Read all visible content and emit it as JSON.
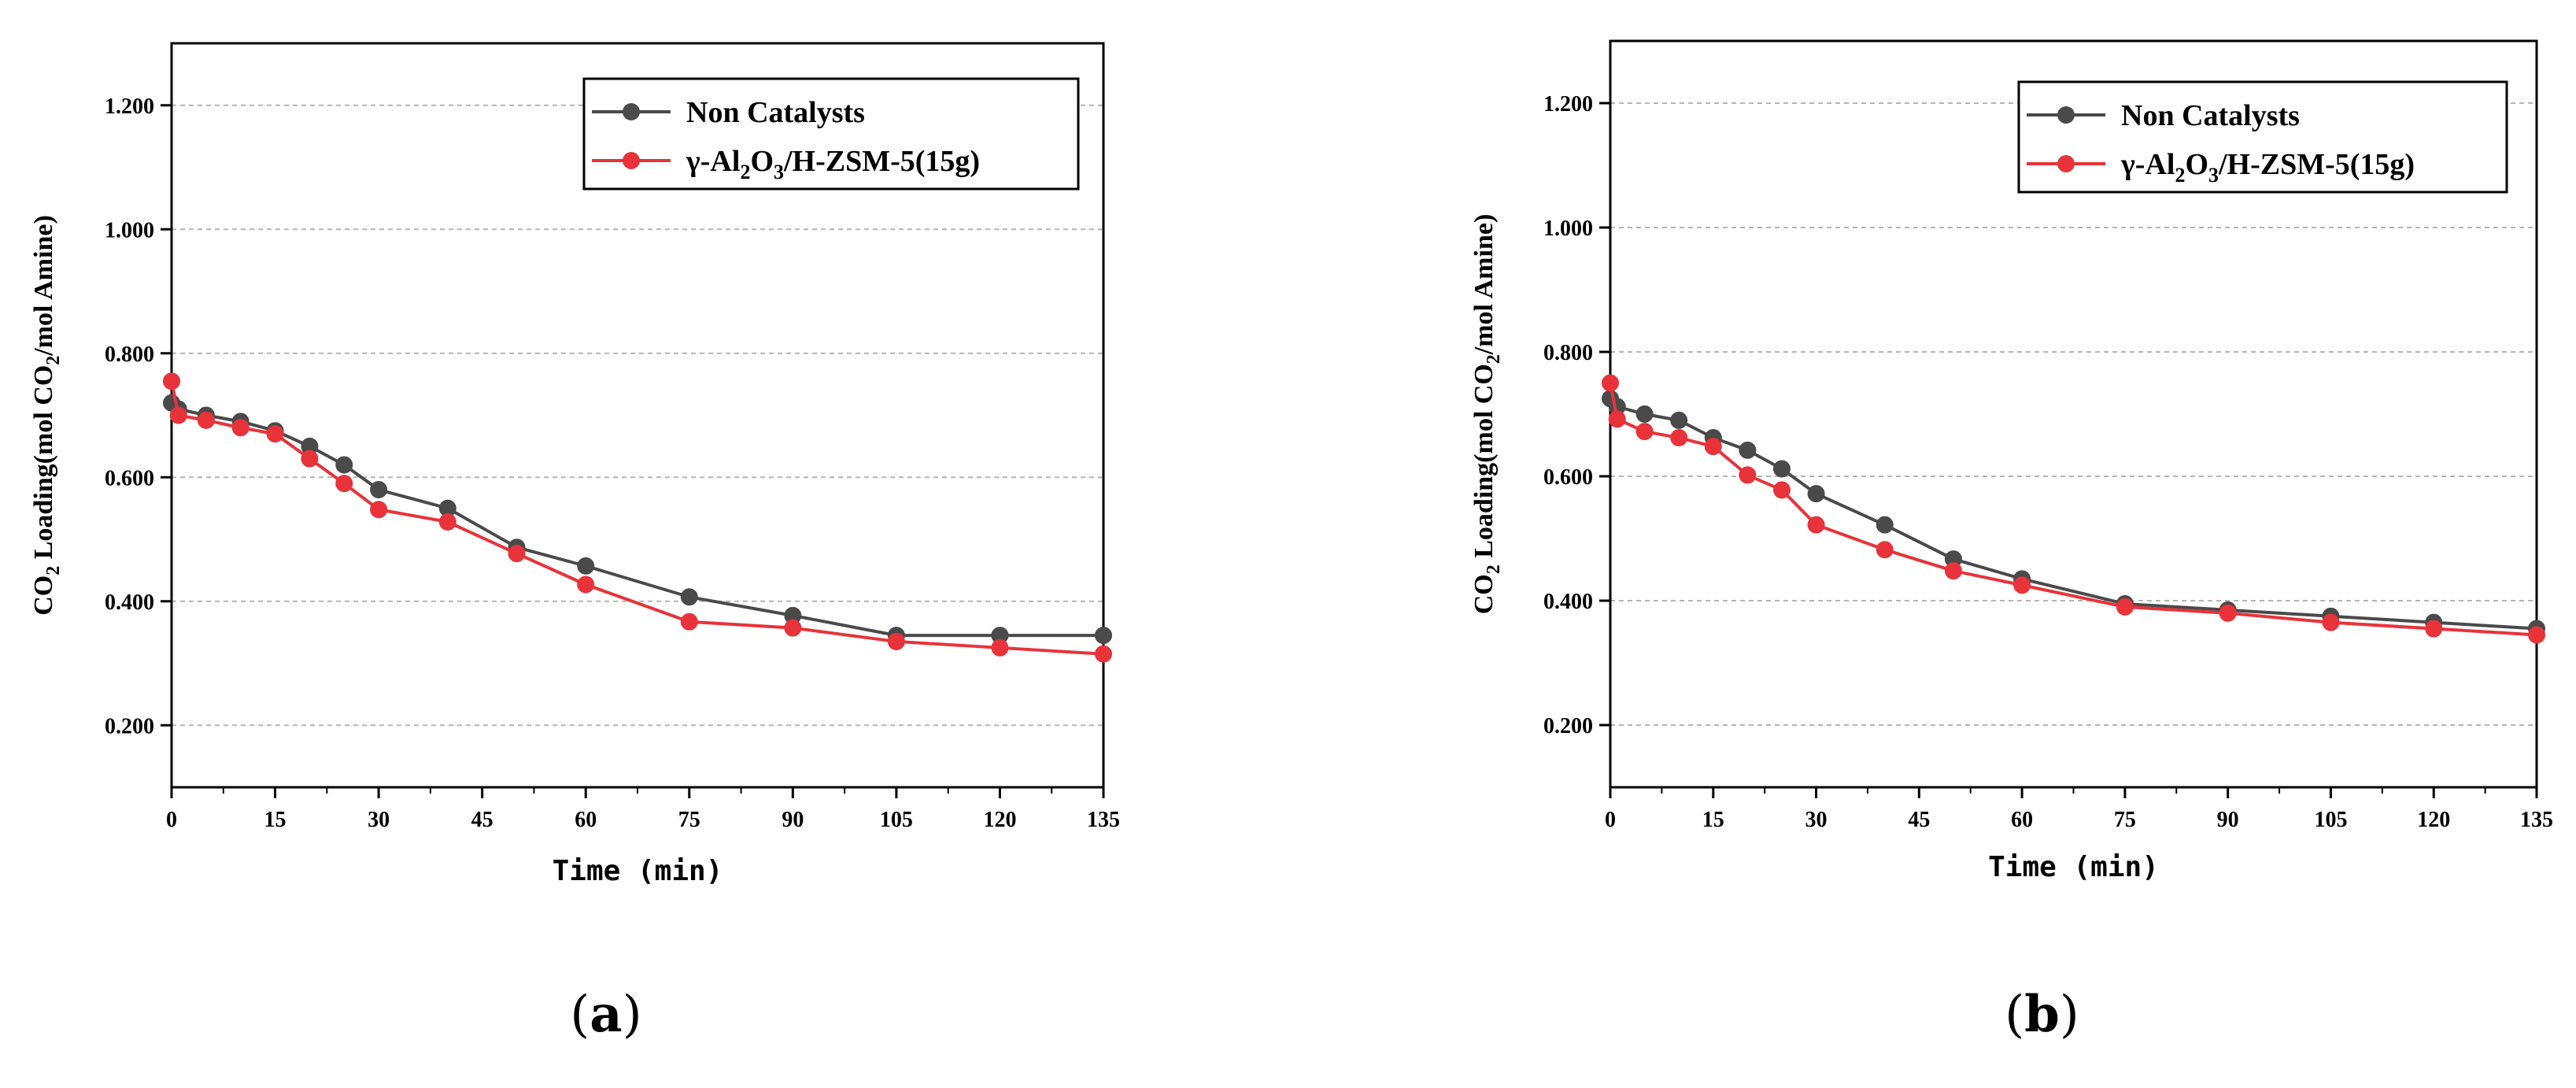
{
  "chart_data": [
    {
      "type": "line",
      "panel_label": "a",
      "xlabel": "Time (min)",
      "ylabel_parts": [
        "CO",
        "2",
        " Loading(mol CO",
        "2",
        "/mol Amine)"
      ],
      "xlim": [
        0,
        135
      ],
      "ylim": [
        0.1,
        1.3
      ],
      "xticks": [
        0,
        15,
        30,
        45,
        60,
        75,
        90,
        105,
        120,
        135
      ],
      "yticks": [
        0.2,
        0.4,
        0.6,
        0.8,
        1.0,
        1.2
      ],
      "ytick_labels": [
        "0.200",
        "0.400",
        "0.600",
        "0.800",
        "1.000",
        "1.200"
      ],
      "grid": true,
      "legend_position": "top-right",
      "series": [
        {
          "name": "Non Catalysts",
          "name_parts": [
            "Non Catalysts"
          ],
          "color": "#4a4a4a",
          "x": [
            0,
            1,
            5,
            10,
            15,
            20,
            25,
            30,
            40,
            50,
            60,
            75,
            90,
            105,
            120,
            135
          ],
          "values": [
            0.72,
            0.71,
            0.7,
            0.69,
            0.675,
            0.65,
            0.62,
            0.58,
            0.55,
            0.487,
            0.457,
            0.407,
            0.377,
            0.345,
            0.345,
            0.345
          ]
        },
        {
          "name": "γ-Al2O3/H-ZSM-5(15g)",
          "name_parts": [
            "γ-Al",
            "2",
            "O",
            "3",
            "/H-ZSM-5(15g)"
          ],
          "color": "#e8333a",
          "x": [
            0,
            1,
            5,
            10,
            15,
            20,
            25,
            30,
            40,
            50,
            60,
            75,
            90,
            105,
            120,
            135
          ],
          "values": [
            0.755,
            0.7,
            0.692,
            0.68,
            0.67,
            0.63,
            0.59,
            0.548,
            0.528,
            0.477,
            0.427,
            0.367,
            0.357,
            0.335,
            0.325,
            0.315
          ]
        }
      ]
    },
    {
      "type": "line",
      "panel_label": "b",
      "xlabel": "Time (min)",
      "ylabel_parts": [
        "CO",
        "2",
        " Loading(mol CO",
        "2",
        "/mol Amine)"
      ],
      "xlim": [
        0,
        135
      ],
      "ylim": [
        0.1,
        1.3
      ],
      "xticks": [
        0,
        15,
        30,
        45,
        60,
        75,
        90,
        105,
        120,
        135
      ],
      "yticks": [
        0.2,
        0.4,
        0.6,
        0.8,
        1.0,
        1.2
      ],
      "ytick_labels": [
        "0.200",
        "0.400",
        "0.600",
        "0.800",
        "1.000",
        "1.200"
      ],
      "grid": true,
      "legend_position": "top-right",
      "series": [
        {
          "name": "Non Catalysts",
          "name_parts": [
            "Non Catalysts"
          ],
          "color": "#4a4a4a",
          "x": [
            0,
            1,
            5,
            10,
            15,
            20,
            25,
            30,
            40,
            50,
            60,
            75,
            90,
            105,
            120,
            135
          ],
          "values": [
            0.725,
            0.712,
            0.7,
            0.69,
            0.662,
            0.642,
            0.612,
            0.572,
            0.522,
            0.467,
            0.435,
            0.395,
            0.385,
            0.375,
            0.365,
            0.355
          ]
        },
        {
          "name": "γ-Al2O3/H-ZSM-5(15g)",
          "name_parts": [
            "γ-Al",
            "2",
            "O",
            "3",
            "/H-ZSM-5(15g)"
          ],
          "color": "#e8333a",
          "x": [
            0,
            1,
            5,
            10,
            15,
            20,
            25,
            30,
            40,
            50,
            60,
            75,
            90,
            105,
            120,
            135
          ],
          "values": [
            0.75,
            0.692,
            0.672,
            0.662,
            0.648,
            0.602,
            0.578,
            0.522,
            0.482,
            0.448,
            0.425,
            0.39,
            0.38,
            0.365,
            0.355,
            0.345
          ]
        }
      ]
    }
  ]
}
